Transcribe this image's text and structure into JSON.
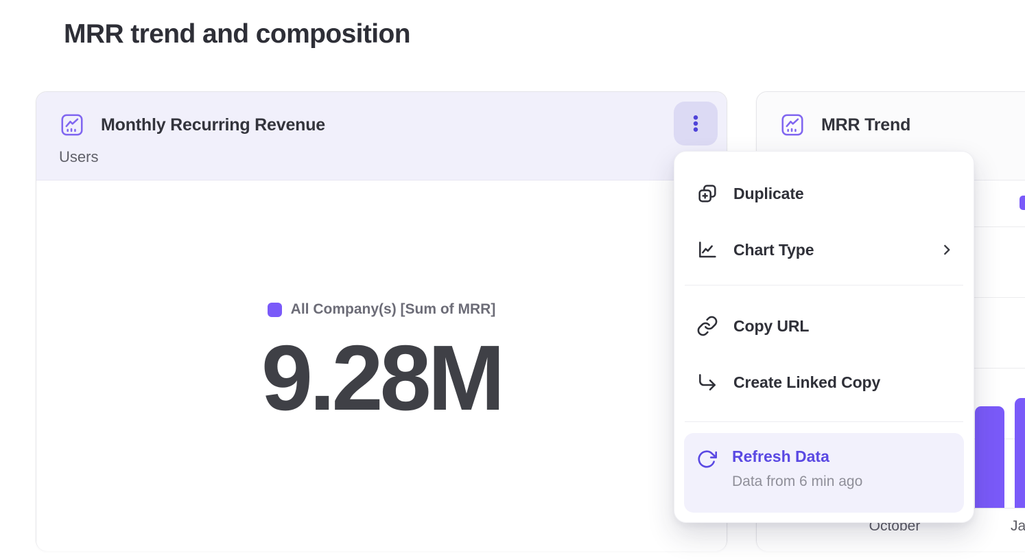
{
  "page": {
    "title": "MRR trend and composition"
  },
  "colors": {
    "accent_purple": "#7a5af9",
    "menu_accent_purple": "#5a49e3",
    "kpi_header_highlight_bg": "#f1f0fb",
    "kebab_button_bg": "#dcdaf4",
    "kebab_dots": "#4f43d8",
    "refresh_item_bg": "#f2f1fc",
    "text_dark": "#2f3037",
    "text_grey": "#606069",
    "gridline": "#ececee"
  },
  "kpi_card": {
    "title": "Monthly Recurring Revenue",
    "subtitle": "Users",
    "legend_label": "All Company(s) [Sum of MRR]",
    "value": "9.28M"
  },
  "trend_card": {
    "title": "MRR Trend",
    "x_labels": [
      "October",
      "Ja"
    ]
  },
  "context_menu": {
    "items": [
      {
        "label": "Duplicate",
        "icon": "duplicate-icon"
      },
      {
        "label": "Chart Type",
        "icon": "chart-type-icon",
        "has_submenu": true
      },
      {
        "label": "Copy URL",
        "icon": "link-icon"
      },
      {
        "label": "Create Linked Copy",
        "icon": "corner-down-right-icon"
      },
      {
        "label": "Refresh Data",
        "icon": "refresh-icon",
        "sublabel": "Data from 6 min ago",
        "highlighted": true
      }
    ]
  },
  "chart_data": [
    {
      "widget": "Monthly Recurring Revenue",
      "type": "big_number",
      "value": "9.28M",
      "series": "All Company(s) [Sum of MRR]"
    },
    {
      "widget": "MRR Trend",
      "type": "bar",
      "bar_color": "#7a5af9",
      "visible_x_tick_labels": [
        "October",
        "Ja"
      ],
      "visible_bars_fraction_of_plot_height": [
        0.31,
        0.335
      ],
      "note": "Chart largely occluded by open context menu; y-axis labels not visible."
    }
  ]
}
